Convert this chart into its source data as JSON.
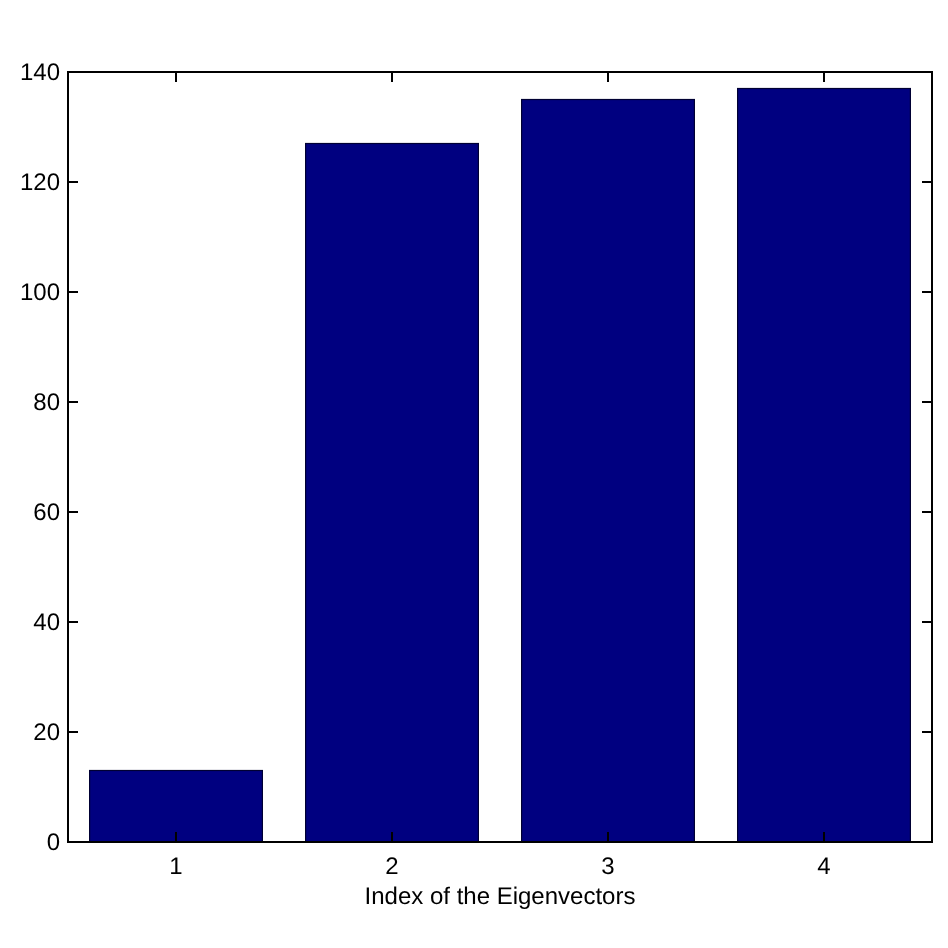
{
  "chart_data": {
    "type": "bar",
    "xlabel": "Index of the Eigenvectors",
    "categories": [
      "1",
      "2",
      "3",
      "4"
    ],
    "values": [
      13,
      127,
      135,
      137
    ],
    "color": "#000080",
    "ylim": [
      0,
      140
    ],
    "yticks": [
      0,
      20,
      40,
      60,
      80,
      100,
      120,
      140
    ],
    "grid": false
  }
}
